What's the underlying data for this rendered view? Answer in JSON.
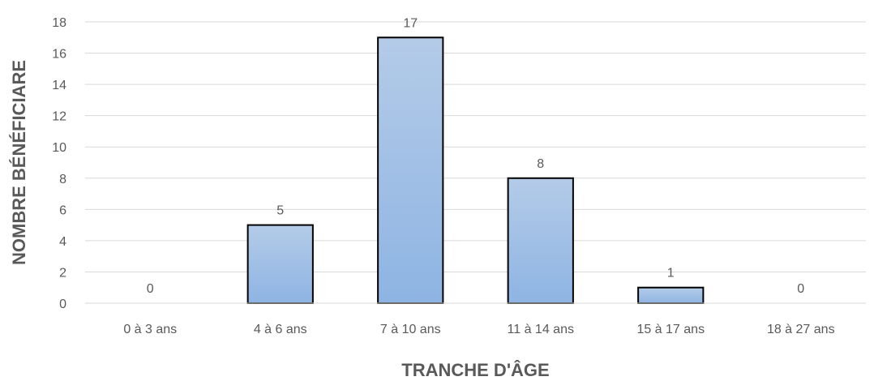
{
  "chart_data": {
    "type": "bar",
    "categories": [
      "0 à 3 ans",
      "4 à 6 ans",
      "7 à 10 ans",
      "11 à 14 ans",
      "15 à 17 ans",
      "18 à 27 ans"
    ],
    "values": [
      0,
      5,
      17,
      8,
      1,
      0
    ],
    "xlabel": "TRANCHE D'ÂGE",
    "ylabel": "NOMBRE BÉNÉFICIARE",
    "ylim": [
      0,
      18
    ],
    "yticks": [
      0,
      2,
      4,
      6,
      8,
      10,
      12,
      14,
      16,
      18
    ],
    "grid": true,
    "data_labels": true,
    "colors": {
      "bar_top": "#b4cbe8",
      "bar_bottom": "#8eb4e3",
      "bar_border": "#000000",
      "grid": "#d9d9d9",
      "text": "#595959"
    }
  }
}
